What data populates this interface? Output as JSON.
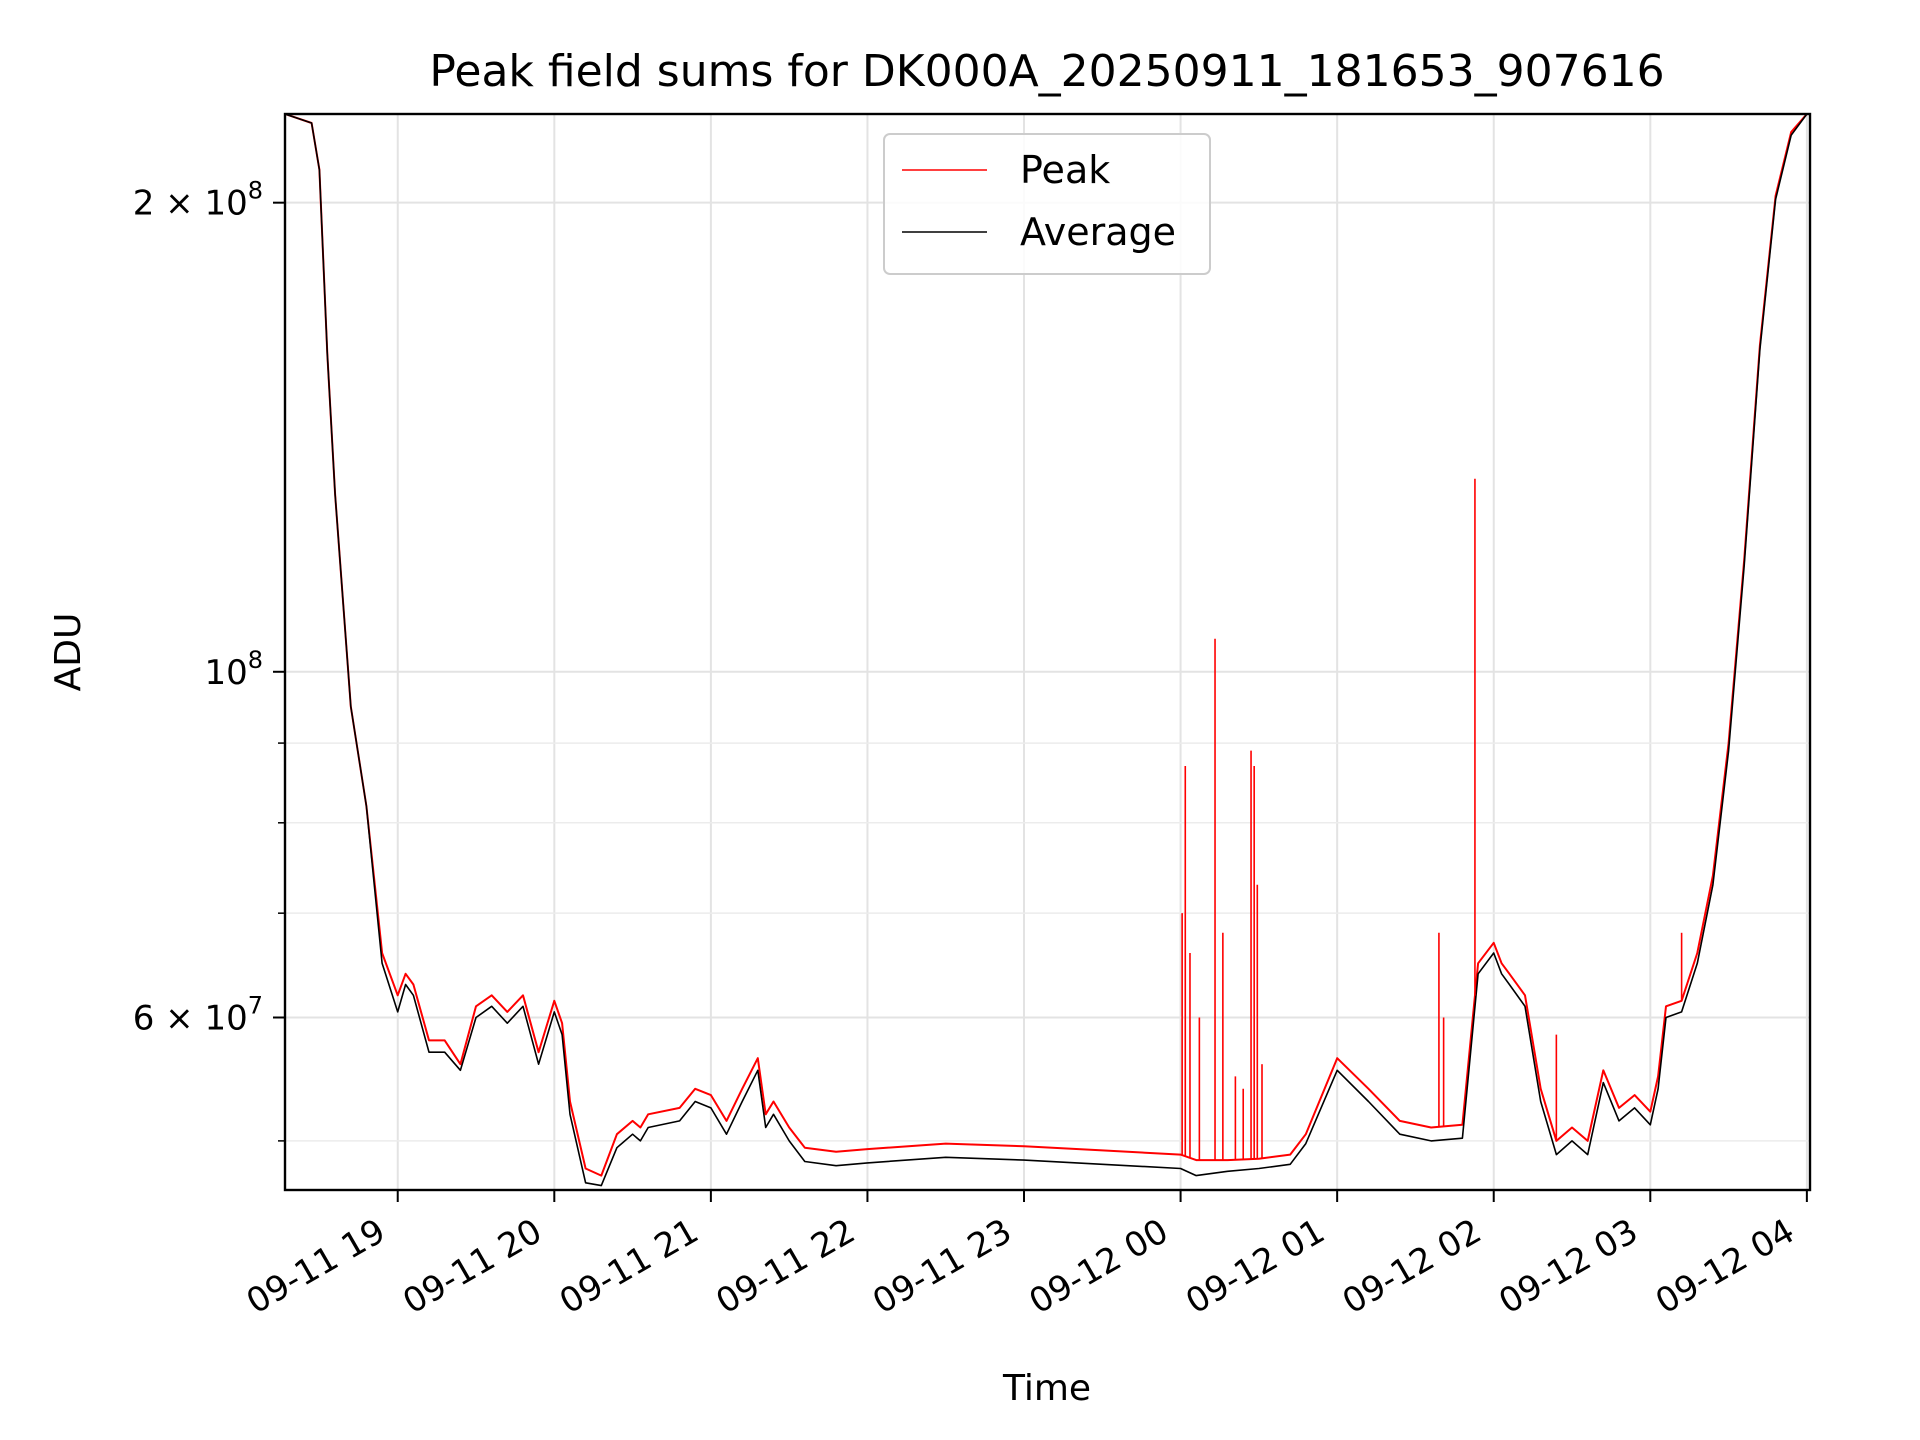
{
  "chart_data": {
    "type": "line",
    "title": "Peak field sums for DK000A_20250911_181653_907616",
    "xlabel": "Time",
    "ylabel": "ADU",
    "yscale": "log",
    "grid": true,
    "legend_position": "top-center",
    "x_unit": "hours since 09-11 18:00",
    "xlim": [
      0.28,
      10.02
    ],
    "ylim": [
      46500000,
      228000000
    ],
    "x_ticks": [
      {
        "x": 1,
        "label": "09-11 19"
      },
      {
        "x": 2,
        "label": "09-11 20"
      },
      {
        "x": 3,
        "label": "09-11 21"
      },
      {
        "x": 4,
        "label": "09-11 22"
      },
      {
        "x": 5,
        "label": "09-11 23"
      },
      {
        "x": 6,
        "label": "09-12 00"
      },
      {
        "x": 7,
        "label": "09-12 01"
      },
      {
        "x": 8,
        "label": "09-12 02"
      },
      {
        "x": 9,
        "label": "09-12 03"
      },
      {
        "x": 10,
        "label": "09-12 04"
      }
    ],
    "y_major_ticks": [
      {
        "value": 200000000,
        "base": "2 × 10",
        "exp": "8"
      },
      {
        "value": 100000000,
        "base": "10",
        "exp": "8"
      },
      {
        "value": 60000000,
        "base": "6 × 10",
        "exp": "7"
      }
    ],
    "y_minor_ticks": [
      50000000,
      70000000,
      80000000,
      90000000
    ],
    "series": [
      {
        "name": "Peak",
        "color": "#ff0000",
        "x": [
          0.28,
          0.45,
          0.5,
          0.55,
          0.6,
          0.7,
          0.8,
          0.9,
          1.0,
          1.05,
          1.1,
          1.2,
          1.3,
          1.4,
          1.5,
          1.6,
          1.7,
          1.8,
          1.9,
          2.0,
          2.05,
          2.1,
          2.2,
          2.3,
          2.4,
          2.5,
          2.55,
          2.6,
          2.8,
          2.9,
          3.0,
          3.1,
          3.2,
          3.3,
          3.35,
          3.4,
          3.5,
          3.6,
          3.8,
          4.0,
          4.5,
          5.0,
          5.5,
          6.0,
          6.1,
          6.3,
          6.5,
          6.7,
          6.8,
          7.0,
          7.2,
          7.4,
          7.6,
          7.8,
          7.9,
          8.0,
          8.05,
          8.1,
          8.2,
          8.3,
          8.4,
          8.5,
          8.6,
          8.7,
          8.8,
          8.9,
          9.0,
          9.05,
          9.1,
          9.2,
          9.3,
          9.4,
          9.5,
          9.6,
          9.7,
          9.8,
          9.9,
          10.0,
          10.02
        ],
        "values": [
          228000000,
          225000000,
          210000000,
          160000000,
          130000000,
          95000000,
          82000000,
          66000000,
          62000000,
          64000000,
          63000000,
          58000000,
          58000000,
          56000000,
          61000000,
          62000000,
          60500000,
          62000000,
          57000000,
          61500000,
          59500000,
          53000000,
          48000000,
          47500000,
          50500000,
          51500000,
          51000000,
          52000000,
          52500000,
          54000000,
          53500000,
          51500000,
          54000000,
          56500000,
          52000000,
          53000000,
          51000000,
          49500000,
          49200000,
          49400000,
          49800000,
          49600000,
          49300000,
          49000000,
          48600000,
          48600000,
          48700000,
          49000000,
          50500000,
          56500000,
          54000000,
          51500000,
          51000000,
          51200000,
          65000000,
          67000000,
          65000000,
          64000000,
          62000000,
          54000000,
          50000000,
          51000000,
          50000000,
          55500000,
          52500000,
          53500000,
          52200000,
          55000000,
          61000000,
          61500000,
          66000000,
          74000000,
          90000000,
          118000000,
          162000000,
          202000000,
          222000000,
          228000000,
          228000000
        ],
        "spikes": [
          {
            "x": 6.01,
            "value": 70000000
          },
          {
            "x": 6.03,
            "value": 87000000
          },
          {
            "x": 6.06,
            "value": 66000000
          },
          {
            "x": 6.12,
            "value": 60000000
          },
          {
            "x": 6.22,
            "value": 105000000
          },
          {
            "x": 6.27,
            "value": 68000000
          },
          {
            "x": 6.35,
            "value": 55000000
          },
          {
            "x": 6.4,
            "value": 54000000
          },
          {
            "x": 6.45,
            "value": 89000000
          },
          {
            "x": 6.47,
            "value": 87000000
          },
          {
            "x": 6.49,
            "value": 73000000
          },
          {
            "x": 6.52,
            "value": 56000000
          },
          {
            "x": 7.65,
            "value": 68000000
          },
          {
            "x": 7.68,
            "value": 60000000
          },
          {
            "x": 7.88,
            "value": 133000000
          },
          {
            "x": 8.4,
            "value": 58500000
          },
          {
            "x": 9.2,
            "value": 68000000
          }
        ]
      },
      {
        "name": "Average",
        "color": "#000000",
        "x": [
          0.28,
          0.45,
          0.5,
          0.55,
          0.6,
          0.7,
          0.8,
          0.9,
          1.0,
          1.05,
          1.1,
          1.2,
          1.3,
          1.4,
          1.5,
          1.6,
          1.7,
          1.8,
          1.9,
          2.0,
          2.05,
          2.1,
          2.2,
          2.3,
          2.4,
          2.5,
          2.55,
          2.6,
          2.8,
          2.9,
          3.0,
          3.1,
          3.2,
          3.3,
          3.35,
          3.4,
          3.5,
          3.6,
          3.8,
          4.0,
          4.5,
          5.0,
          5.5,
          6.0,
          6.1,
          6.3,
          6.5,
          6.7,
          6.8,
          7.0,
          7.2,
          7.4,
          7.6,
          7.8,
          7.9,
          8.0,
          8.05,
          8.1,
          8.2,
          8.3,
          8.4,
          8.5,
          8.6,
          8.7,
          8.8,
          8.9,
          9.0,
          9.05,
          9.1,
          9.2,
          9.3,
          9.4,
          9.5,
          9.6,
          9.7,
          9.8,
          9.9,
          10.0,
          10.02
        ],
        "values": [
          228000000,
          225000000,
          210000000,
          160000000,
          130000000,
          95000000,
          82000000,
          65000000,
          60500000,
          63000000,
          62000000,
          57000000,
          57000000,
          55500000,
          60000000,
          61000000,
          59500000,
          61000000,
          56000000,
          60500000,
          58500000,
          52000000,
          47000000,
          46800000,
          49500000,
          50500000,
          50000000,
          51000000,
          51500000,
          53000000,
          52500000,
          50500000,
          53000000,
          55500000,
          51000000,
          52000000,
          50000000,
          48500000,
          48200000,
          48400000,
          48800000,
          48600000,
          48300000,
          48000000,
          47500000,
          47800000,
          48000000,
          48300000,
          49800000,
          55500000,
          53000000,
          50500000,
          50000000,
          50200000,
          64000000,
          66000000,
          64000000,
          63000000,
          61000000,
          53000000,
          49000000,
          50000000,
          49000000,
          54500000,
          51500000,
          52500000,
          51200000,
          54000000,
          60000000,
          60500000,
          65000000,
          73000000,
          89000000,
          117000000,
          161000000,
          201000000,
          221000000,
          228000000,
          228000000
        ]
      }
    ]
  }
}
